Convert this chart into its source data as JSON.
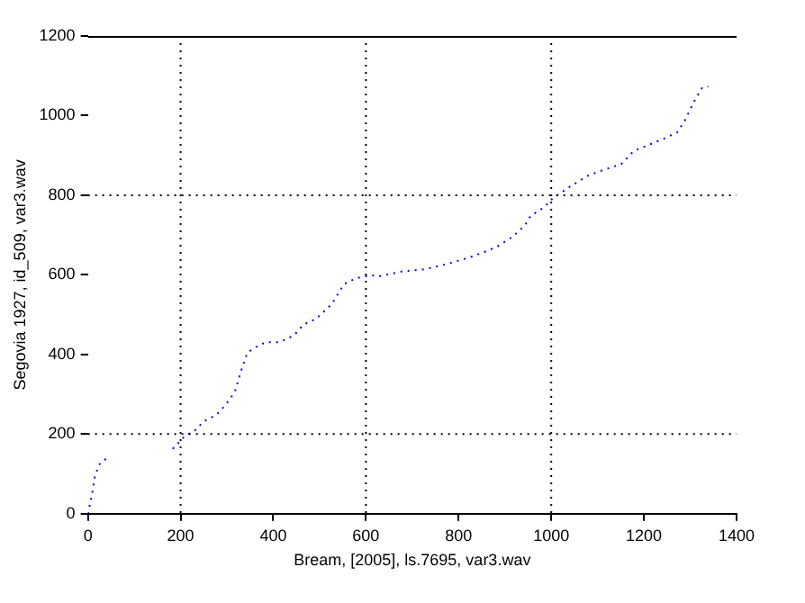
{
  "chart_data": {
    "type": "line",
    "xlabel": "Bream, [2005], ls.7695, var3.wav",
    "ylabel": "Segovia 1927, id_509, var3.wav",
    "x": [
      0,
      9,
      15,
      24,
      42,
      100,
      183,
      199,
      210,
      230,
      250,
      277,
      297,
      317,
      331,
      344,
      358,
      384,
      414,
      445,
      465,
      492,
      526,
      553,
      580,
      613,
      627,
      680,
      727,
      781,
      835,
      882,
      916,
      943,
      956,
      983,
      1003,
      1037,
      1077,
      1111,
      1151,
      1178,
      1205,
      1245,
      1272,
      1288,
      1310,
      1326,
      1339
    ],
    "series": [
      {
        "color": "#0000ff",
        "values": [
          0,
          50,
          94,
          123,
          141,
          null,
          163,
          182,
          196,
          208,
          232,
          248,
          273,
          306,
          360,
          404,
          416,
          431,
          431,
          448,
          475,
          489,
          526,
          577,
          592,
          599,
          596,
          609,
          614,
          629,
          648,
          670,
          695,
          724,
          749,
          768,
          792,
          819,
          848,
          863,
          878,
          911,
          924,
          943,
          958,
          987,
          1039,
          1071,
          1073
        ]
      }
    ],
    "xlim": [
      0,
      1400
    ],
    "xticks": [
      0,
      200,
      400,
      600,
      800,
      1000,
      1200,
      1400
    ],
    "ylim": [
      0,
      1200
    ],
    "yticks": [
      0,
      200,
      400,
      600,
      800,
      1000,
      1200
    ],
    "grid": false,
    "legend": false,
    "marker": "none",
    "line_style": "dotted",
    "ref_lines": [
      {
        "axis": "x",
        "value": 200,
        "color": "#000000",
        "line_style": "dotted"
      },
      {
        "axis": "x",
        "value": 600,
        "color": "#000000",
        "line_style": "dotted"
      },
      {
        "axis": "x",
        "value": 1000,
        "color": "#000000",
        "line_style": "dotted"
      },
      {
        "axis": "y",
        "value": 200,
        "color": "#000000",
        "line_style": "dotted"
      },
      {
        "axis": "y",
        "value": 800,
        "color": "#000000",
        "line_style": "dotted"
      }
    ]
  }
}
